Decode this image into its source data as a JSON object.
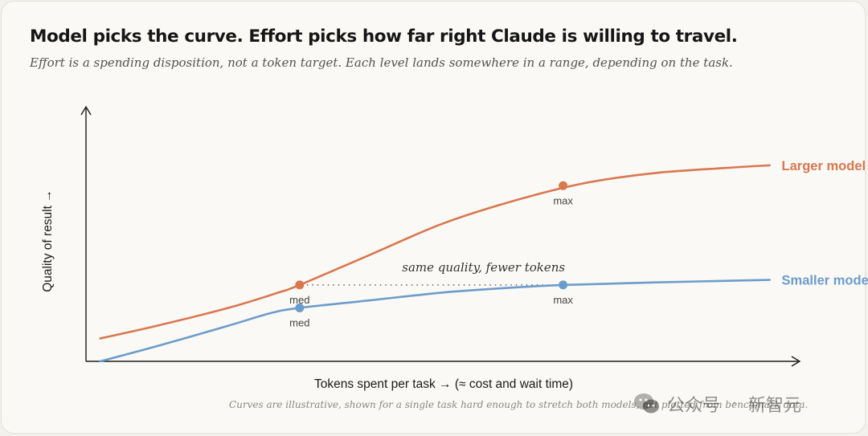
{
  "header": {
    "title": "Model picks the curve. Effort picks how far right Claude is willing to travel.",
    "subtitle": "Effort is a spending disposition, not a token target. Each level lands somewhere in a range, depending on the task."
  },
  "footnote": "Curves are illustrative, shown for a single task hard enough to stretch both models, not plotted from benchmark data.",
  "watermark": {
    "icon": "wechat-icon",
    "account_label": "公众号",
    "separator": "·",
    "brand": "新智元"
  },
  "chart_data": {
    "type": "line",
    "title": "Model picks the curve. Effort picks how far right Claude is willing to travel.",
    "xlabel": "Tokens spent per task → (≈ cost and wait time)",
    "ylabel": "Quality of result →",
    "xlim": [
      0,
      100
    ],
    "ylim": [
      0,
      100
    ],
    "grid": false,
    "legend": "inline labels at right end of each curve",
    "series": [
      {
        "name": "Larger model",
        "color": "#d9774f",
        "points": [
          [
            2,
            9
          ],
          [
            10,
            14
          ],
          [
            20,
            21
          ],
          [
            27,
            27
          ],
          [
            30,
            30
          ],
          [
            40,
            42
          ],
          [
            50,
            54
          ],
          [
            60,
            63
          ],
          [
            70,
            70
          ],
          [
            80,
            74
          ],
          [
            90,
            76
          ],
          [
            96,
            77
          ]
        ],
        "markers": [
          {
            "x": 30,
            "y": 30,
            "label": "med"
          },
          {
            "x": 67,
            "y": 69,
            "label": "max"
          }
        ]
      },
      {
        "name": "Smaller model",
        "color": "#6c9ccc",
        "points": [
          [
            2,
            0
          ],
          [
            10,
            6
          ],
          [
            20,
            14
          ],
          [
            26,
            19
          ],
          [
            30,
            21
          ],
          [
            40,
            24
          ],
          [
            50,
            27
          ],
          [
            60,
            29
          ],
          [
            67,
            30
          ],
          [
            80,
            31
          ],
          [
            96,
            32
          ]
        ],
        "markers": [
          {
            "x": 30,
            "y": 21,
            "label": "med"
          },
          {
            "x": 67,
            "y": 30,
            "label": "max"
          }
        ]
      }
    ],
    "annotations": [
      {
        "text": "same quality, fewer tokens",
        "from": [
          30,
          30
        ],
        "to": [
          67,
          30
        ],
        "style": "dotted"
      }
    ]
  }
}
